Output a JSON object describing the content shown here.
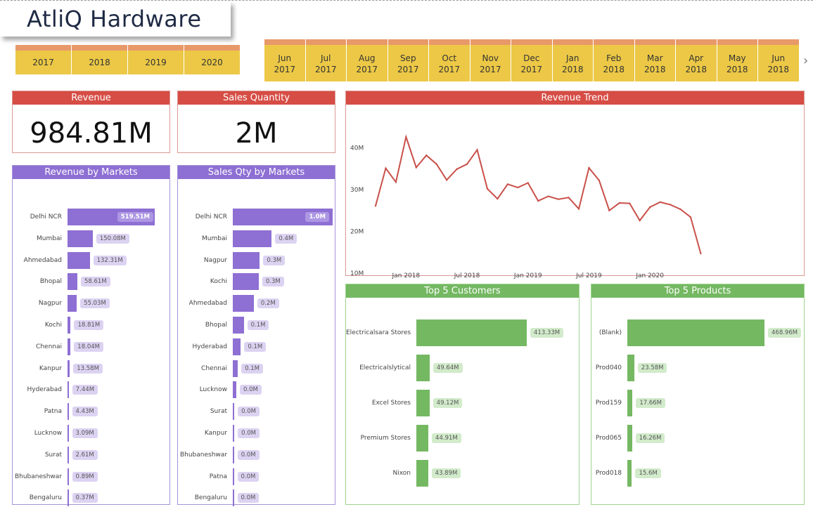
{
  "title": "AtliQ Hardware",
  "year_slicer": [
    "2017",
    "2018",
    "2019",
    "2020"
  ],
  "month_slicer": [
    [
      "Jun",
      "2017"
    ],
    [
      "Jul",
      "2017"
    ],
    [
      "Aug",
      "2017"
    ],
    [
      "Sep",
      "2017"
    ],
    [
      "Oct",
      "2017"
    ],
    [
      "Nov",
      "2017"
    ],
    [
      "Dec",
      "2017"
    ],
    [
      "Jan",
      "2018"
    ],
    [
      "Feb",
      "2018"
    ],
    [
      "Mar",
      "2018"
    ],
    [
      "Apr",
      "2018"
    ],
    [
      "May",
      "2018"
    ],
    [
      "Jun",
      "2018"
    ]
  ],
  "slicer_next_icon": "chevron-right-icon",
  "kpis": {
    "revenue": {
      "title": "Revenue",
      "value": "984.81M"
    },
    "quantity": {
      "title": "Sales Quantity",
      "value": "2M"
    }
  },
  "colors": {
    "red": "#d64d45",
    "purple": "#8e6fd3",
    "green": "#74b862",
    "slicer": "#ecc846",
    "slicer_top": "#e8996a"
  },
  "chart_data": [
    {
      "type": "line",
      "title": "Revenue Trend",
      "ylim": [
        10,
        45
      ],
      "yticks": [
        "10M",
        "20M",
        "30M",
        "40M"
      ],
      "ytick_values": [
        10,
        20,
        30,
        40
      ],
      "xticks": [
        "Jan 2018",
        "Jul 2018",
        "Jan 2019",
        "Jul 2019",
        "Jan 2020"
      ],
      "xtick_index": [
        3,
        9,
        15,
        21,
        27
      ],
      "x": [
        "Oct 2017",
        "Nov 2017",
        "Dec 2017",
        "Jan 2018",
        "Feb 2018",
        "Mar 2018",
        "Apr 2018",
        "May 2018",
        "Jun 2018",
        "Jul 2018",
        "Aug 2018",
        "Sep 2018",
        "Oct 2018",
        "Nov 2018",
        "Dec 2018",
        "Jan 2019",
        "Feb 2019",
        "Mar 2019",
        "Apr 2019",
        "May 2019",
        "Jun 2019",
        "Jul 2019",
        "Aug 2019",
        "Sep 2019",
        "Oct 2019",
        "Nov 2019",
        "Dec 2019",
        "Jan 2020",
        "Feb 2020",
        "Mar 2020",
        "Apr 2020",
        "May 2020",
        "Jun 2020"
      ],
      "values": [
        26.1,
        35.1,
        31.8,
        42.6,
        35.3,
        38.2,
        36.1,
        32.3,
        34.9,
        36.1,
        39.5,
        30.2,
        27.8,
        31.3,
        30.5,
        31.6,
        27.3,
        28.4,
        27.7,
        28.1,
        25.4,
        35.2,
        32.2,
        25.0,
        26.8,
        26.7,
        22.6,
        25.8,
        27.0,
        26.4,
        25.3,
        23.4,
        14.7
      ]
    },
    {
      "type": "bar",
      "title": "Revenue by Markets",
      "categories": [
        "Delhi NCR",
        "Mumbai",
        "Ahmedabad",
        "Bhopal",
        "Nagpur",
        "Kochi",
        "Chennai",
        "Kanpur",
        "Hyderabad",
        "Patna",
        "Lucknow",
        "Surat",
        "Bhubaneshwar",
        "Bengaluru"
      ],
      "values": [
        519.51,
        150.08,
        132.31,
        58.61,
        55.03,
        18.81,
        18.04,
        13.58,
        7.44,
        4.43,
        3.09,
        2.61,
        0.89,
        0.37
      ],
      "labels": [
        "519.51M",
        "150.08M",
        "132.31M",
        "58.61M",
        "55.03M",
        "18.81M",
        "18.04M",
        "13.58M",
        "7.44M",
        "4.43M",
        "3.09M",
        "2.61M",
        "0.89M",
        "0.37M"
      ]
    },
    {
      "type": "bar",
      "title": "Sales Qty by Markets",
      "categories": [
        "Delhi NCR",
        "Mumbai",
        "Nagpur",
        "Kochi",
        "Ahmedabad",
        "Bhopal",
        "Hyderabad",
        "Chennai",
        "Lucknow",
        "Surat",
        "Kanpur",
        "Bhubaneshwar",
        "Patna",
        "Bengaluru"
      ],
      "values": [
        1.0,
        0.39,
        0.27,
        0.26,
        0.21,
        0.11,
        0.08,
        0.05,
        0.035,
        0.015,
        0.015,
        0.012,
        0.005,
        0.005
      ],
      "labels": [
        "1.0M",
        "0.4M",
        "0.3M",
        "0.3M",
        "0.2M",
        "0.1M",
        "0.1M",
        "0.1M",
        "0.0M",
        "0.0M",
        "0.0M",
        "0.0M",
        "0.0M",
        "0.0M"
      ]
    },
    {
      "type": "bar",
      "title": "Top 5 Customers",
      "categories": [
        "Electricalsara Stores",
        "Electricalslytical",
        "Excel Stores",
        "Premium Stores",
        "Nixon"
      ],
      "values": [
        413.33,
        49.64,
        49.12,
        44.91,
        43.89
      ],
      "labels": [
        "413.33M",
        "49.64M",
        "49.12M",
        "44.91M",
        "43.89M"
      ]
    },
    {
      "type": "bar",
      "title": "Top 5 Products",
      "categories": [
        "(Blank)",
        "Prod040",
        "Prod159",
        "Prod065",
        "Prod018"
      ],
      "values": [
        468.96,
        23.58,
        17.66,
        16.26,
        15.6
      ],
      "labels": [
        "468.96M",
        "23.58M",
        "17.66M",
        "16.26M",
        "15.6M"
      ]
    }
  ]
}
